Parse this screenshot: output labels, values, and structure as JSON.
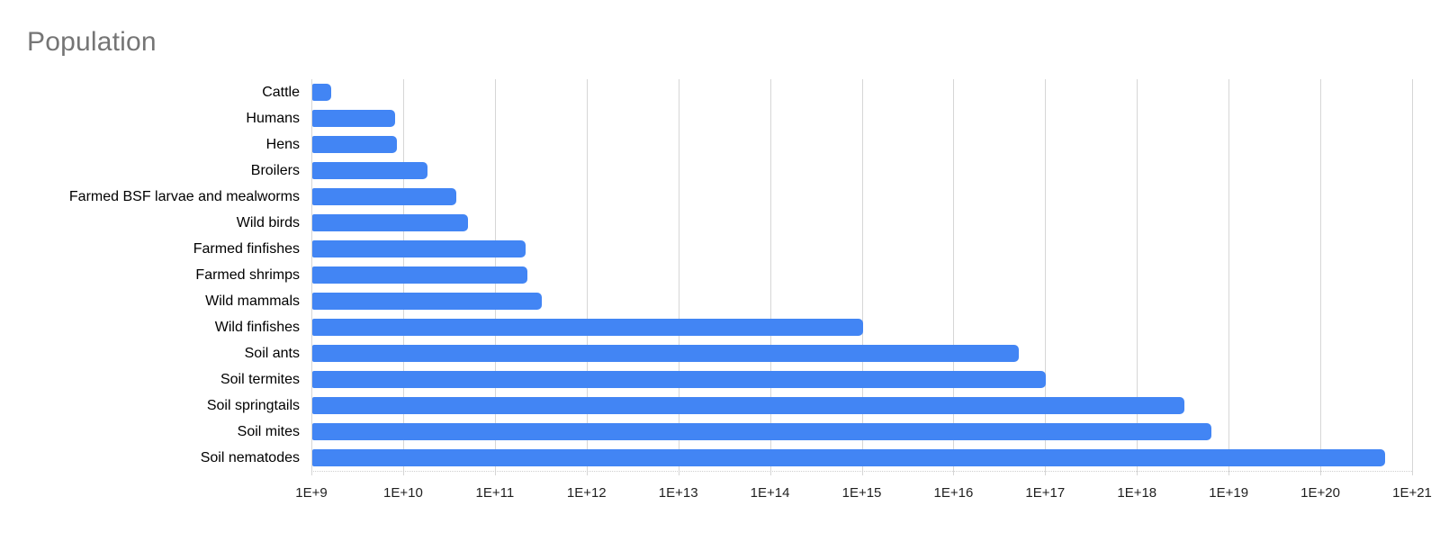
{
  "header": {
    "title": "Population"
  },
  "colors": {
    "bar": "#4285f4",
    "title": "#757575",
    "gridline": "#d6d6d6",
    "text": "#000000"
  },
  "chart_data": {
    "type": "bar",
    "orientation": "horizontal",
    "title": "Population",
    "x_scale": "log",
    "xlim": [
      1000000000.0,
      1e+21
    ],
    "grid": "vertical",
    "legend": "none",
    "x_tick_labels": [
      "1E+9",
      "1E+10",
      "1E+11",
      "1E+12",
      "1E+13",
      "1E+14",
      "1E+15",
      "1E+16",
      "1E+17",
      "1E+18",
      "1E+19",
      "1E+20",
      "1E+21"
    ],
    "categories": [
      "Cattle",
      "Humans",
      "Hens",
      "Broilers",
      "Farmed BSF larvae and mealworms",
      "Wild birds",
      "Farmed finfishes",
      "Farmed shrimps",
      "Wild mammals",
      "Wild finfishes",
      "Soil ants",
      "Soil termites",
      "Soil springtails",
      "Soil mites",
      "Soil nematodes"
    ],
    "values": [
      1600000000.0,
      8000000000.0,
      8400000000.0,
      18000000000.0,
      37000000000.0,
      50000000000.0,
      210000000000.0,
      220000000000.0,
      320000000000.0,
      1000000000000000.0,
      5e+16,
      1e+17,
      3.2e+18,
      6.3e+18,
      5e+20
    ]
  }
}
